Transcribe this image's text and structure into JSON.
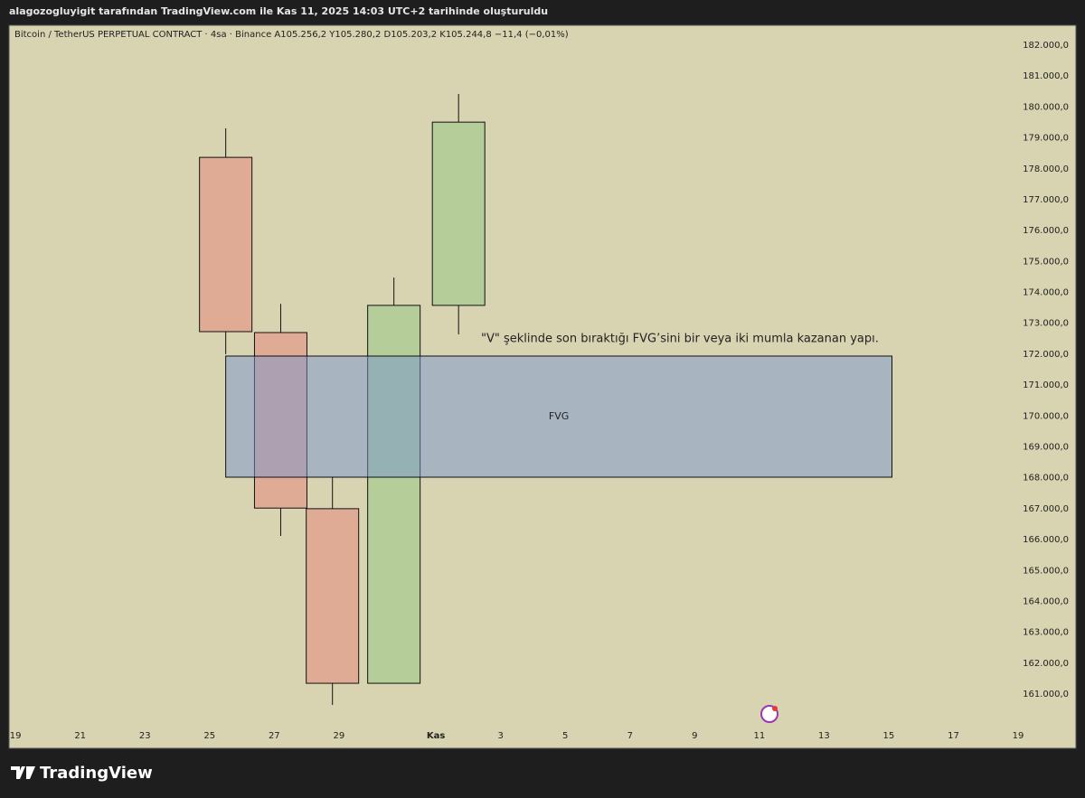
{
  "header": {
    "caption": "alagozogluyigit tarafından TradingView.com ile Kas 11, 2025 14:03 UTC+2 tarihinde oluşturuldu",
    "brand": "TradingView"
  },
  "chart_data": {
    "type": "candlestick",
    "legend_text": "Bitcoin / TetherUS PERPETUAL CONTRACT · 4sa · Binance  A105.256,2  Y105.280,2  D105.203,2  K105.244,8  −11,4 (−0,01%)",
    "x": [
      25.5,
      27.2,
      28.8,
      30.7,
      32.7
    ],
    "open": [
      178370,
      172700,
      167000,
      161350,
      173580
    ],
    "high": [
      179310,
      173630,
      168020,
      174480,
      180420
    ],
    "low": [
      172000,
      166120,
      160650,
      161350,
      172640
    ],
    "close": [
      172730,
      167020,
      161350,
      173580,
      179510
    ],
    "up_color": "#b5cd98",
    "down_color": "#e0ab94",
    "xlim": [
      18.8,
      52.6
    ],
    "xticks": [
      19,
      21,
      23,
      25,
      27,
      29,
      {
        "value": 32,
        "label": "Kas"
      },
      {
        "value": 34,
        "label": "3"
      },
      {
        "value": 36,
        "label": "5"
      },
      {
        "value": 38,
        "label": "7"
      },
      {
        "value": 40,
        "label": "9"
      },
      {
        "value": 42,
        "label": "11"
      },
      {
        "value": 44,
        "label": "13"
      },
      {
        "value": 46,
        "label": "15"
      },
      {
        "value": 48,
        "label": "17"
      },
      {
        "value": 50,
        "label": "19"
      }
    ],
    "ylim": [
      160100,
      182600
    ],
    "yticks": [
      {
        "value": 161000,
        "label": "161.000,0"
      },
      {
        "value": 162000,
        "label": "162.000,0"
      },
      {
        "value": 163000,
        "label": "163.000,0"
      },
      {
        "value": 164000,
        "label": "164.000,0"
      },
      {
        "value": 165000,
        "label": "165.000,0"
      },
      {
        "value": 166000,
        "label": "166.000,0"
      },
      {
        "value": 167000,
        "label": "167.000,0"
      },
      {
        "value": 168000,
        "label": "168.000,0"
      },
      {
        "value": 169000,
        "label": "169.000,0"
      },
      {
        "value": 170000,
        "label": "170.000,0"
      },
      {
        "value": 171000,
        "label": "171.000,0"
      },
      {
        "value": 172000,
        "label": "172.000,0"
      },
      {
        "value": 173000,
        "label": "173.000,0"
      },
      {
        "value": 174000,
        "label": "174.000,0"
      },
      {
        "value": 175000,
        "label": "175.000,0"
      },
      {
        "value": 176000,
        "label": "176.000,0"
      },
      {
        "value": 177000,
        "label": "177.000,0"
      },
      {
        "value": 178000,
        "label": "178.000,0"
      },
      {
        "value": 179000,
        "label": "179.000,0"
      },
      {
        "value": 180000,
        "label": "180.000,0"
      },
      {
        "value": 181000,
        "label": "181.000,0"
      },
      {
        "value": 182000,
        "label": "182.000,0"
      }
    ],
    "fvg": {
      "label": "FVG",
      "top": 171940,
      "bottom": 168020,
      "x_start": 25.5,
      "x_end": 46.1
    },
    "annotation": "\"V\" şeklinde son bıraktığı FVG’sini bir veya iki mumla kazanan yapı."
  }
}
